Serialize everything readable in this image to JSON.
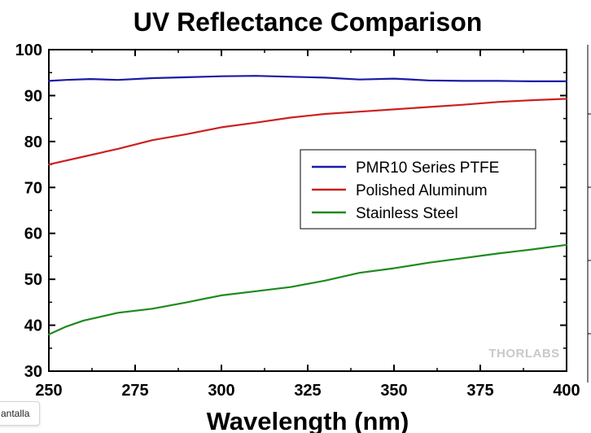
{
  "chart_data": {
    "type": "line",
    "title": "UV Reflectance Comparison",
    "xlabel": "Wavelength (nm)",
    "ylabel": "",
    "xlim": [
      250,
      400
    ],
    "ylim": [
      30,
      100
    ],
    "x_ticks": [
      250,
      275,
      300,
      325,
      350,
      375,
      400
    ],
    "y_ticks": [
      30,
      40,
      50,
      60,
      70,
      80,
      90,
      100
    ],
    "grid": false,
    "legend_position": "center-right",
    "series": [
      {
        "name": "PMR10 Series PTFE",
        "color": "#1a1aa6",
        "x": [
          250,
          255,
          262,
          270,
          280,
          290,
          300,
          310,
          320,
          330,
          340,
          350,
          360,
          370,
          380,
          390,
          400
        ],
        "y": [
          93.2,
          93.4,
          93.6,
          93.4,
          93.8,
          94.0,
          94.2,
          94.3,
          94.1,
          93.9,
          93.5,
          93.7,
          93.3,
          93.2,
          93.2,
          93.1,
          93.1
        ]
      },
      {
        "name": "Polished Aluminum",
        "color": "#cc2020",
        "x": [
          250,
          260,
          270,
          280,
          290,
          300,
          310,
          320,
          330,
          340,
          350,
          360,
          370,
          380,
          390,
          400
        ],
        "y": [
          75.0,
          76.7,
          78.4,
          80.3,
          81.6,
          83.1,
          84.1,
          85.2,
          86.0,
          86.5,
          87.0,
          87.5,
          88.0,
          88.6,
          89.0,
          89.3
        ]
      },
      {
        "name": "Stainless Steel",
        "color": "#1e8a1e",
        "x": [
          250,
          255,
          260,
          270,
          280,
          290,
          300,
          310,
          320,
          330,
          340,
          350,
          360,
          370,
          380,
          390,
          400
        ],
        "y": [
          38.0,
          39.7,
          41.0,
          42.7,
          43.6,
          45.0,
          46.5,
          47.4,
          48.3,
          49.7,
          51.4,
          52.4,
          53.6,
          54.6,
          55.6,
          56.5,
          57.5
        ]
      }
    ]
  },
  "watermark": "THORLABS",
  "tooltip_fragment": "antalla"
}
